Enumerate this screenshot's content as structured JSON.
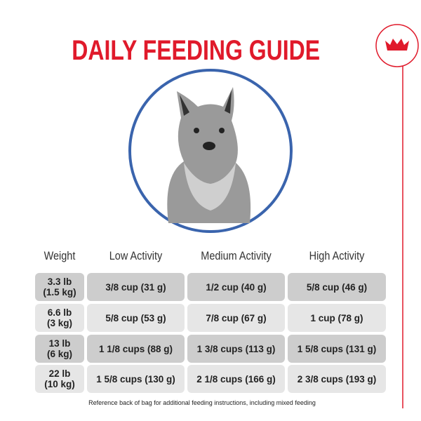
{
  "header": {
    "title": "DAILY FEEDING GUIDE"
  },
  "table": {
    "columns": [
      "Weight",
      "Low Activity",
      "Medium Activity",
      "High Activity"
    ],
    "rows": [
      [
        [
          "3.3 lb",
          "(1.5 kg)"
        ],
        "3/8 cup (31 g)",
        "1/2 cup (40 g)",
        "5/8 cup (46 g)"
      ],
      [
        [
          "6.6 lb",
          "(3 kg)"
        ],
        "5/8 cup (53 g)",
        "7/8 cup (67 g)",
        "1 cup (78 g)"
      ],
      [
        [
          "13 lb",
          "(6 kg)"
        ],
        "1 1/8 cups (88 g)",
        "1 3/8 cups (113 g)",
        "1 5/8 cups (131 g)"
      ],
      [
        [
          "22 lb",
          "(10 kg)"
        ],
        "1 5/8 cups (130 g)",
        "2 1/8 cups (166 g)",
        "2 3/8 cups (193 g)"
      ]
    ]
  },
  "footer": {
    "note": "Reference back of bag for additional feeding instructions, including mixed feeding"
  }
}
